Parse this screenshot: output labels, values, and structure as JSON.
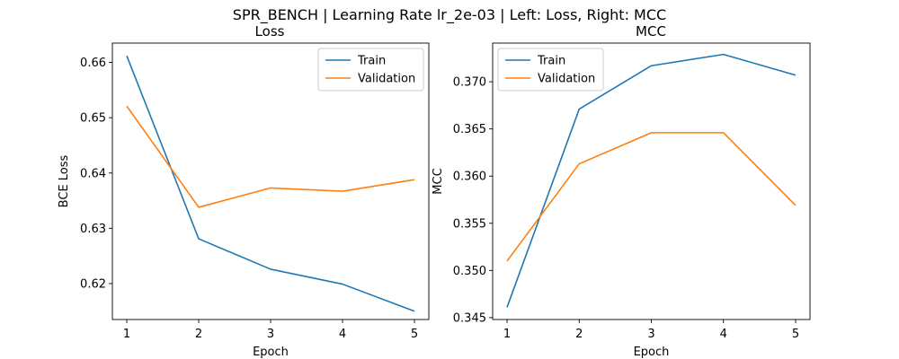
{
  "figure": {
    "title": "SPR_BENCH | Learning Rate lr_2e-03 | Left: Loss, Right: MCC"
  },
  "colors": {
    "train": "#1f77b4",
    "validation": "#ff7f0e"
  },
  "chart_data": [
    {
      "type": "line",
      "title": "Loss",
      "xlabel": "Epoch",
      "ylabel": "BCE Loss",
      "x": [
        1,
        2,
        3,
        4,
        5
      ],
      "xticks": [
        1,
        2,
        3,
        4,
        5
      ],
      "yticks": [
        0.62,
        0.63,
        0.64,
        0.65,
        0.66
      ],
      "ytick_labels": [
        "0.62",
        "0.63",
        "0.64",
        "0.65",
        "0.66"
      ],
      "ylim": [
        0.6135,
        0.6635
      ],
      "xlim": [
        0.8,
        5.2
      ],
      "grid": false,
      "legend": "top-right",
      "series": [
        {
          "name": "Train",
          "values": [
            0.6612,
            0.6281,
            0.6226,
            0.6199,
            0.615
          ]
        },
        {
          "name": "Validation",
          "values": [
            0.6521,
            0.6338,
            0.6373,
            0.6367,
            0.6388
          ]
        }
      ]
    },
    {
      "type": "line",
      "title": "MCC",
      "xlabel": "Epoch",
      "ylabel": "MCC",
      "x": [
        1,
        2,
        3,
        4,
        5
      ],
      "xticks": [
        1,
        2,
        3,
        4,
        5
      ],
      "yticks": [
        0.345,
        0.35,
        0.355,
        0.36,
        0.365,
        0.37
      ],
      "ytick_labels": [
        "0.345",
        "0.350",
        "0.355",
        "0.360",
        "0.365",
        "0.370"
      ],
      "ylim": [
        0.3448,
        0.3741
      ],
      "xlim": [
        0.8,
        5.2
      ],
      "grid": false,
      "legend": "top-left",
      "series": [
        {
          "name": "Train",
          "values": [
            0.3461,
            0.3671,
            0.3717,
            0.3729,
            0.3707
          ]
        },
        {
          "name": "Validation",
          "values": [
            0.351,
            0.3613,
            0.3646,
            0.3646,
            0.3569
          ]
        }
      ]
    }
  ]
}
